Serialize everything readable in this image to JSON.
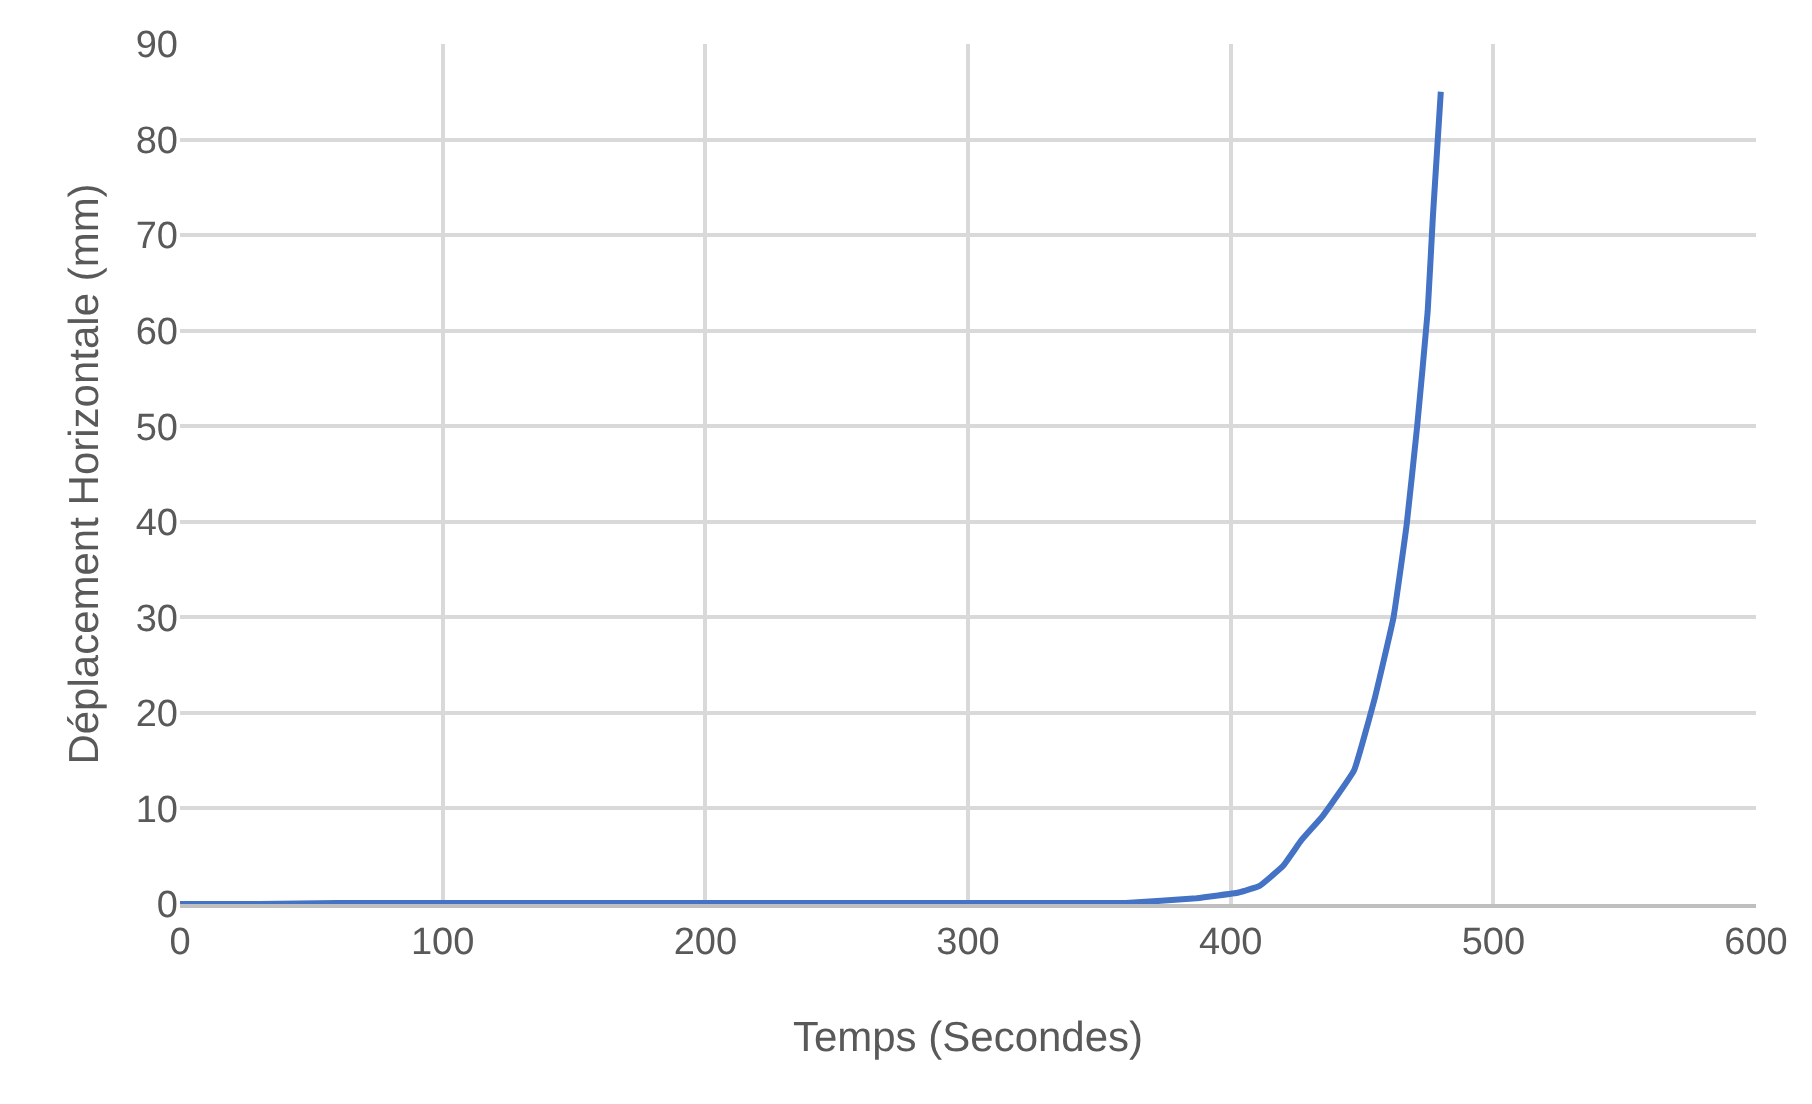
{
  "chart_data": {
    "type": "line",
    "xlabel": "Temps (Secondes)",
    "ylabel": "Déplacement Horizontale (mm)",
    "series": [
      {
        "color": "#4472c4",
        "x": [
          0,
          30,
          60,
          150,
          250,
          340,
          360,
          387,
          403,
          411,
          420,
          427,
          435,
          447,
          455,
          462,
          467,
          471,
          475,
          477,
          480
        ],
        "values": [
          0,
          0,
          0.1,
          0.1,
          0.1,
          0.1,
          0.1,
          0.6,
          1.2,
          1.9,
          4.0,
          6.7,
          9.2,
          14.0,
          21.7,
          30,
          39.7,
          50,
          62,
          72,
          85
        ]
      }
    ],
    "xlim": [
      0,
      600
    ],
    "xticks": [
      0,
      100,
      200,
      300,
      400,
      500,
      600
    ],
    "ylim": [
      0,
      90
    ],
    "yticks": [
      0,
      10,
      20,
      30,
      40,
      50,
      60,
      70,
      80,
      90
    ],
    "grid": true,
    "marker": "none",
    "line_style": "solid"
  }
}
